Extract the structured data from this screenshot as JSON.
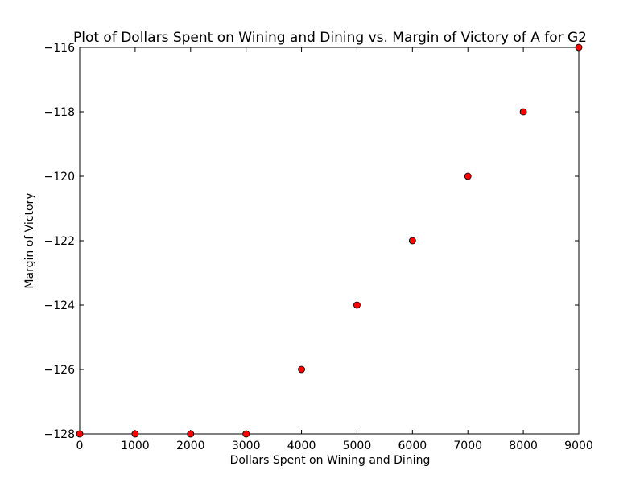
{
  "chart_data": {
    "type": "scatter",
    "title": "Plot of Dollars Spent on Wining and Dining  vs. Margin of Victory of A for G2",
    "xlabel": "Dollars Spent on Wining and Dining",
    "ylabel": "Margin of Victory",
    "xlim": [
      0,
      9000
    ],
    "ylim": [
      -128,
      -116
    ],
    "x_ticks": [
      0,
      1000,
      2000,
      3000,
      4000,
      5000,
      6000,
      7000,
      8000,
      9000
    ],
    "x_tick_labels": [
      "0",
      "1000",
      "2000",
      "3000",
      "4000",
      "5000",
      "6000",
      "7000",
      "8000",
      "9000"
    ],
    "y_ticks": [
      -128,
      -126,
      -124,
      -122,
      -120,
      -118,
      -116
    ],
    "y_tick_labels": [
      "−128",
      "−126",
      "−124",
      "−122",
      "−120",
      "−118",
      "−116"
    ],
    "grid": false,
    "legend": "none",
    "series": [
      {
        "color": "#ff0000",
        "marker": "circle",
        "x": [
          0,
          1000,
          2000,
          3000,
          4000,
          5000,
          6000,
          7000,
          8000,
          9000
        ],
        "y": [
          -128,
          -128,
          -128,
          -128,
          -126,
          -124,
          -122,
          -120,
          -118,
          -116
        ]
      }
    ]
  }
}
